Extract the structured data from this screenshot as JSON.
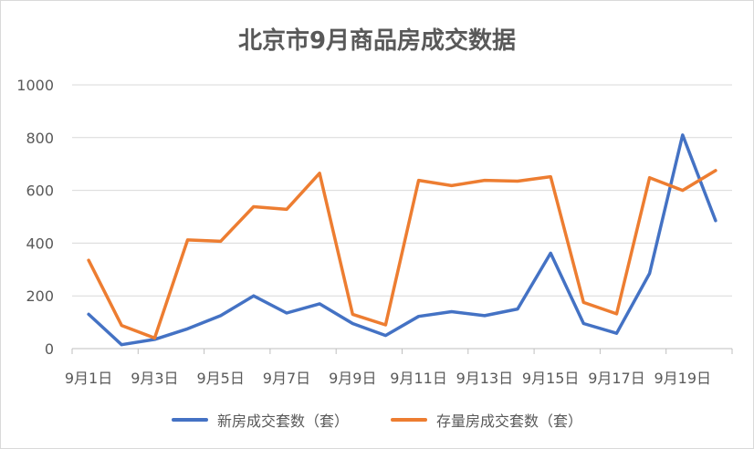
{
  "chart_data": {
    "type": "line",
    "title": "北京市9月商品房成交数据",
    "x": [
      "9月1日",
      "9月2日",
      "9月3日",
      "9月4日",
      "9月5日",
      "9月6日",
      "9月7日",
      "9月8日",
      "9月9日",
      "9月10日",
      "9月11日",
      "9月12日",
      "9月13日",
      "9月14日",
      "9月15日",
      "9月16日",
      "9月17日",
      "9月18日",
      "9月19日",
      "9月20日"
    ],
    "xtick_labels": [
      "9月1日",
      "9月3日",
      "9月5日",
      "9月7日",
      "9月9日",
      "9月11日",
      "9月13日",
      "9月15日",
      "9月17日",
      "9月19日"
    ],
    "ylim": [
      0,
      1000
    ],
    "yticks": [
      0,
      200,
      400,
      600,
      800,
      1000
    ],
    "grid": true,
    "legend_position": "bottom",
    "series": [
      {
        "name": "新房成交套数（套）",
        "color": "#4472c4",
        "values": [
          130,
          15,
          35,
          75,
          125,
          200,
          135,
          170,
          95,
          50,
          122,
          140,
          125,
          150,
          362,
          95,
          58,
          285,
          810,
          485
        ]
      },
      {
        "name": "存量房成交套数（套）",
        "color": "#ed7d31",
        "values": [
          335,
          88,
          40,
          412,
          407,
          538,
          528,
          665,
          130,
          90,
          638,
          618,
          638,
          635,
          652,
          175,
          132,
          648,
          600,
          675
        ]
      }
    ]
  }
}
